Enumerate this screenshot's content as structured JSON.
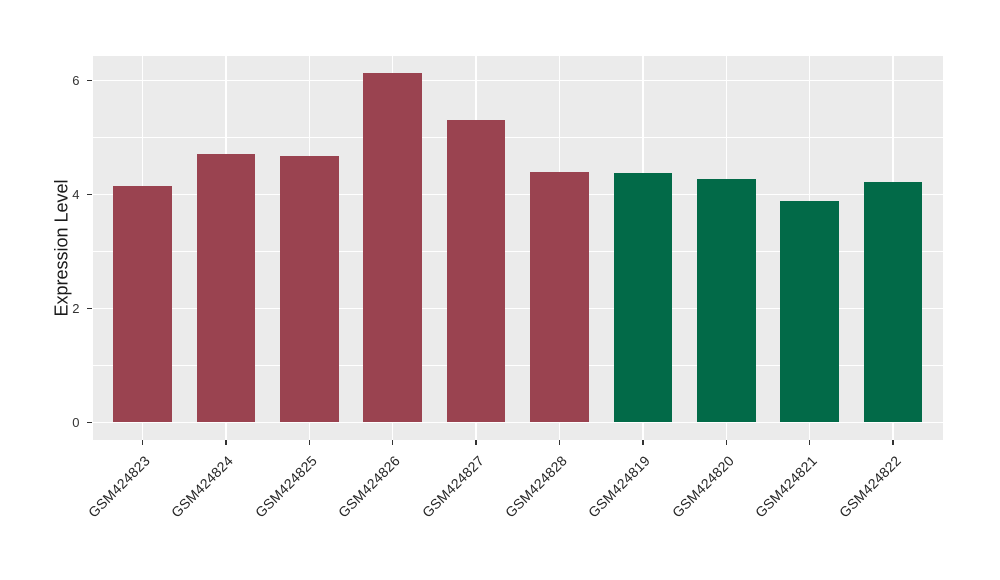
{
  "chart_data": {
    "type": "bar",
    "title": "",
    "xlabel": "",
    "ylabel": "Expression Level",
    "categories": [
      "GSM424823",
      "GSM424824",
      "GSM424825",
      "GSM424826",
      "GSM424827",
      "GSM424828",
      "GSM424819",
      "GSM424820",
      "GSM424821",
      "GSM424822"
    ],
    "values": [
      4.14,
      4.7,
      4.68,
      6.12,
      5.31,
      4.39,
      4.38,
      4.27,
      3.88,
      4.21
    ],
    "bar_colors": [
      "#9a4350",
      "#9a4350",
      "#9a4350",
      "#9a4350",
      "#9a4350",
      "#9a4350",
      "#026a48",
      "#026a48",
      "#026a48",
      "#026a48"
    ],
    "yticks": [
      0,
      2,
      4,
      6
    ],
    "minor_yticks": [
      1,
      3,
      5
    ],
    "ylim": [
      -0.31,
      6.43
    ],
    "grid": true,
    "legend": false,
    "colors": {
      "panel_background": "#ebebeb",
      "major_gridline": "#ffffff",
      "minor_gridline": "#ffffff",
      "tick_text": "#333333",
      "axis_title_text": "#1a1a1a",
      "figure_background": "#ffffff"
    }
  }
}
